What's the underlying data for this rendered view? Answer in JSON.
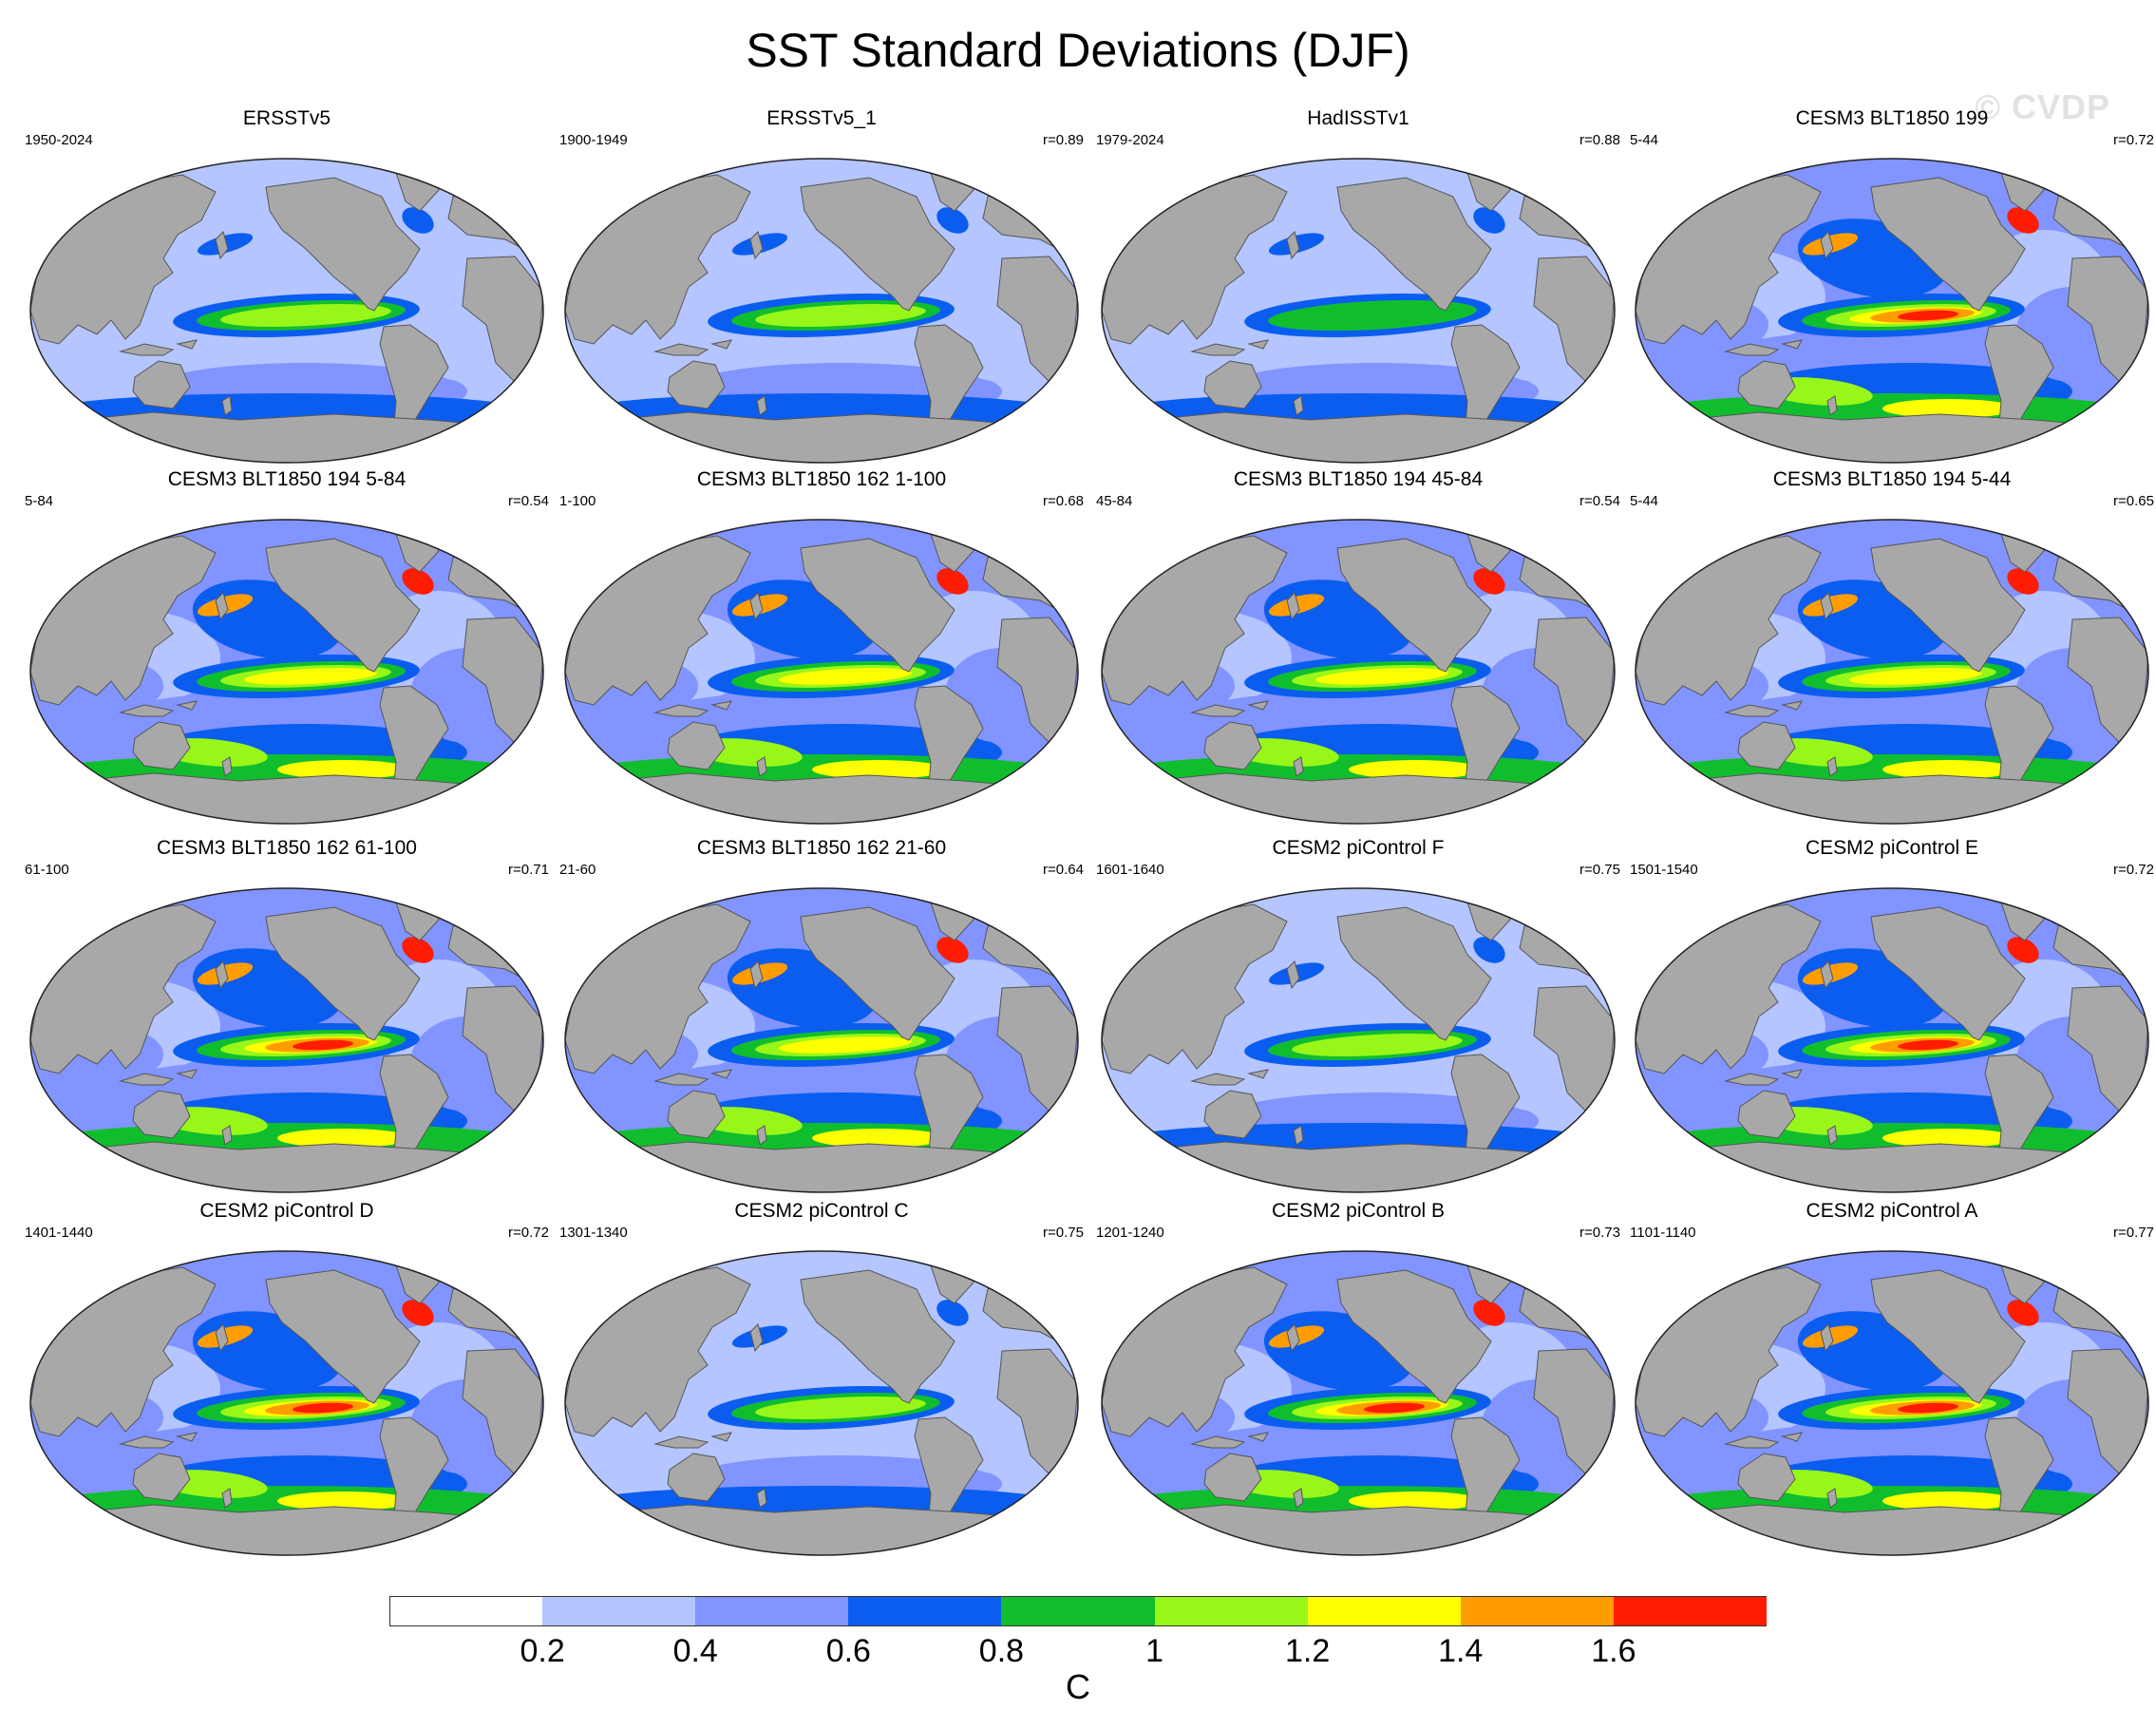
{
  "title": "SST Standard Deviations (DJF)",
  "watermark": "© CVDP",
  "colors": {
    "land": "#a8a8a8",
    "land_edge": "#555555",
    "levels": [
      "#ffffff",
      "#b4c5ff",
      "#8194ff",
      "#0b5df0",
      "#10be2d",
      "#98f718",
      "#ffff00",
      "#ff9d00",
      "#ff1c00"
    ]
  },
  "colorbar": {
    "tick_labels": [
      "0.2",
      "0.4",
      "0.6",
      "0.8",
      "1",
      "1.2",
      "1.4",
      "1.6"
    ],
    "unit": "C"
  },
  "panels": [
    {
      "title": "ERSSTv5",
      "period": "1950-2024",
      "corr": "",
      "intensity": 2
    },
    {
      "title": "ERSSTv5_1",
      "period": "1900-1949",
      "corr": "r=0.89",
      "intensity": 2
    },
    {
      "title": "HadISSTv1",
      "period": "1979-2024",
      "corr": "r=0.88",
      "intensity": 1
    },
    {
      "title": "CESM3 BLT1850 199",
      "period": "5-44",
      "corr": "r=0.72",
      "intensity": 4
    },
    {
      "title": "CESM3 BLT1850 194 5-84",
      "period": "5-84",
      "corr": "r=0.54",
      "intensity": 3
    },
    {
      "title": "CESM3 BLT1850 162 1-100",
      "period": "1-100",
      "corr": "r=0.68",
      "intensity": 3
    },
    {
      "title": "CESM3 BLT1850 194 45-84",
      "period": "45-84",
      "corr": "r=0.54",
      "intensity": 3
    },
    {
      "title": "CESM3 BLT1850 194 5-44",
      "period": "5-44",
      "corr": "r=0.65",
      "intensity": 3
    },
    {
      "title": "CESM3 BLT1850 162 61-100",
      "period": "61-100",
      "corr": "r=0.71",
      "intensity": 4
    },
    {
      "title": "CESM3 BLT1850 162 21-60",
      "period": "21-60",
      "corr": "r=0.64",
      "intensity": 3
    },
    {
      "title": "CESM2 piControl F",
      "period": "1601-1640",
      "corr": "r=0.75",
      "intensity": 2
    },
    {
      "title": "CESM2 piControl E",
      "period": "1501-1540",
      "corr": "r=0.72",
      "intensity": 4
    },
    {
      "title": "CESM2 piControl D",
      "period": "1401-1440",
      "corr": "r=0.72",
      "intensity": 4
    },
    {
      "title": "CESM2 piControl C",
      "period": "1301-1340",
      "corr": "r=0.75",
      "intensity": 2
    },
    {
      "title": "CESM2 piControl B",
      "period": "1201-1240",
      "corr": "r=0.73",
      "intensity": 4
    },
    {
      "title": "CESM2 piControl A",
      "period": "1101-1140",
      "corr": "r=0.77",
      "intensity": 4
    }
  ]
}
